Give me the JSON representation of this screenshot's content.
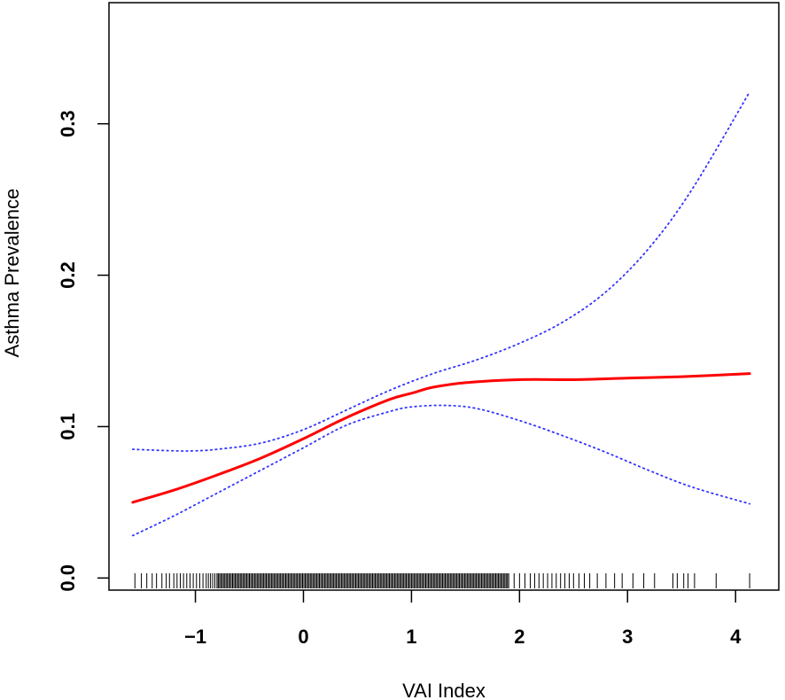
{
  "chart_data": {
    "type": "line",
    "title": "",
    "xlabel": "VAI Index",
    "ylabel": "Asthma Prevalence",
    "xlim": [
      -1.8,
      4.4
    ],
    "ylim": [
      -0.008,
      0.38
    ],
    "x_ticks": [
      -1,
      0,
      1,
      2,
      3,
      4
    ],
    "x_tick_labels": [
      "−1",
      "0",
      "1",
      "2",
      "3",
      "4"
    ],
    "y_ticks": [
      0.0,
      0.1,
      0.2,
      0.3
    ],
    "y_tick_labels": [
      "0.0",
      "0.1",
      "0.2",
      "0.3"
    ],
    "grid": false,
    "series": [
      {
        "role": "estimate",
        "color": "#ff0000",
        "style": "solid",
        "x": [
          -1.58,
          -1.2,
          -0.8,
          -0.4,
          0.0,
          0.4,
          0.8,
          1.0,
          1.2,
          1.5,
          2.0,
          2.5,
          3.0,
          3.5,
          4.13
        ],
        "y": [
          0.05,
          0.058,
          0.068,
          0.079,
          0.092,
          0.106,
          0.118,
          0.122,
          0.126,
          0.129,
          0.131,
          0.131,
          0.132,
          0.133,
          0.135
        ]
      },
      {
        "role": "upper",
        "color": "#3333ff",
        "style": "dotted",
        "x": [
          -1.58,
          -1.2,
          -1.0,
          -0.8,
          -0.4,
          0.0,
          0.4,
          0.8,
          1.2,
          1.6,
          2.0,
          2.4,
          2.8,
          3.2,
          3.6,
          4.13
        ],
        "y": [
          0.085,
          0.084,
          0.084,
          0.085,
          0.089,
          0.098,
          0.111,
          0.124,
          0.135,
          0.144,
          0.155,
          0.169,
          0.189,
          0.218,
          0.257,
          0.321
        ]
      },
      {
        "role": "lower",
        "color": "#3333ff",
        "style": "dotted",
        "x": [
          -1.58,
          -1.2,
          -0.8,
          -0.4,
          0.0,
          0.4,
          0.8,
          1.0,
          1.3,
          1.6,
          2.0,
          2.4,
          2.8,
          3.2,
          3.6,
          4.13
        ],
        "y": [
          0.028,
          0.041,
          0.056,
          0.071,
          0.086,
          0.101,
          0.11,
          0.113,
          0.114,
          0.112,
          0.104,
          0.094,
          0.083,
          0.071,
          0.06,
          0.049
        ]
      }
    ],
    "rug": {
      "color": "#000000",
      "x": [
        -1.56,
        -1.5,
        -1.45,
        -1.4,
        -1.36,
        -1.31,
        -1.27,
        -1.24,
        -1.2,
        -1.17,
        -1.14,
        -1.11,
        -1.08,
        -1.05,
        -1.02,
        -0.99,
        -0.96,
        -0.93,
        -0.9,
        -0.88,
        -0.86,
        -0.84,
        -0.82,
        -0.8,
        1.9,
        1.95,
        2.0,
        2.05,
        2.1,
        2.14,
        2.18,
        2.22,
        2.26,
        2.3,
        2.34,
        2.38,
        2.42,
        2.46,
        2.5,
        2.55,
        2.6,
        2.65,
        2.72,
        2.8,
        2.88,
        2.95,
        3.05,
        3.15,
        3.25,
        3.42,
        3.46,
        3.52,
        3.56,
        3.62,
        3.82,
        4.13
      ],
      "dense_from": -0.8,
      "dense_to": 1.9
    }
  }
}
